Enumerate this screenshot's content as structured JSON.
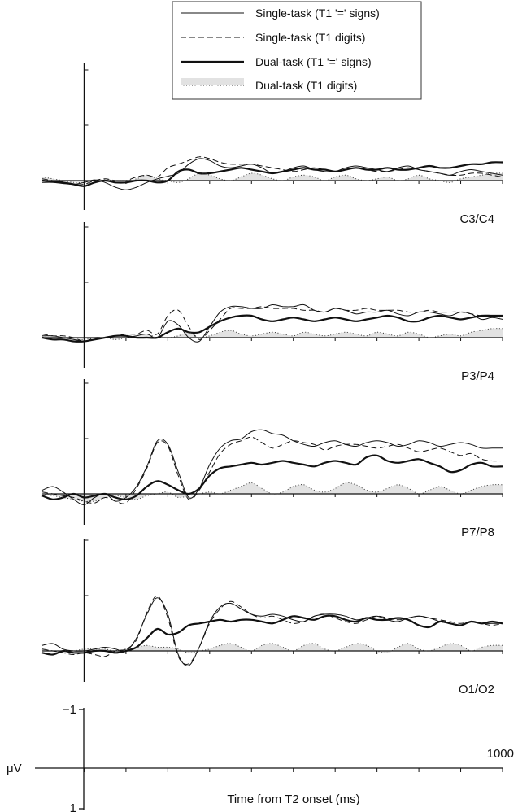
{
  "chart_data": {
    "type": "line",
    "xlabel": "Time from T2 onset (ms)",
    "scale": {
      "unit_label": "μV",
      "x_tick_label": "1000",
      "y_top_label": "−1",
      "y_bottom_label": "1",
      "xlim": [
        -100,
        1000
      ],
      "ylim_note": "negative up",
      "tick_spacing_ms": 100
    },
    "legend": {
      "position": "top-right",
      "entries": [
        {
          "label": "Single-task (T1 '=' signs)",
          "style": "thin-solid"
        },
        {
          "label": "Single-task (T1 digits)",
          "style": "thin-dashed"
        },
        {
          "label": "Dual-task (T1 '=' signs)",
          "style": "thick-solid"
        },
        {
          "label": "Dual-task (T1 digits)",
          "style": "dotted-shaded"
        }
      ]
    },
    "x": [
      -100,
      -75,
      -50,
      -25,
      0,
      25,
      50,
      75,
      100,
      125,
      150,
      175,
      200,
      225,
      250,
      275,
      300,
      325,
      350,
      375,
      400,
      425,
      450,
      475,
      500,
      525,
      550,
      575,
      600,
      625,
      650,
      675,
      700,
      725,
      750,
      775,
      800,
      825,
      850,
      875,
      900,
      925,
      950,
      975,
      1000
    ],
    "panels": [
      {
        "label": "C3/C4",
        "series": [
          {
            "name": "Single-task (T1 '=' signs)",
            "values": [
              -0.05,
              -0.05,
              -0.08,
              -0.1,
              -0.05,
              0.02,
              -0.05,
              -0.18,
              -0.25,
              -0.18,
              -0.05,
              0.05,
              0.12,
              0.2,
              0.45,
              0.6,
              0.55,
              0.4,
              0.35,
              0.4,
              0.45,
              0.35,
              0.2,
              0.25,
              0.35,
              0.4,
              0.3,
              0.25,
              0.25,
              0.35,
              0.4,
              0.35,
              0.3,
              0.25,
              0.35,
              0.4,
              0.3,
              0.25,
              0.2,
              0.15,
              0.25,
              0.3,
              0.25,
              0.2,
              0.15
            ]
          },
          {
            "name": "Single-task (T1 digits)",
            "values": [
              0.05,
              0.0,
              -0.05,
              -0.1,
              -0.1,
              0.0,
              0.05,
              0.0,
              0.0,
              0.1,
              0.15,
              0.1,
              0.35,
              0.45,
              0.55,
              0.65,
              0.6,
              0.5,
              0.45,
              0.45,
              0.45,
              0.4,
              0.35,
              0.3,
              0.25,
              0.3,
              0.35,
              0.3,
              0.25,
              0.3,
              0.35,
              0.3,
              0.25,
              0.25,
              0.3,
              0.35,
              0.3,
              0.25,
              0.2,
              0.15,
              0.15,
              0.2,
              0.2,
              0.15,
              0.1
            ]
          },
          {
            "name": "Dual-task (T1 '=' signs)",
            "values": [
              0.0,
              -0.03,
              -0.05,
              -0.1,
              -0.15,
              -0.05,
              0.0,
              -0.05,
              -0.05,
              0.0,
              0.0,
              -0.05,
              0.0,
              0.25,
              0.3,
              0.2,
              0.2,
              0.25,
              0.3,
              0.35,
              0.3,
              0.25,
              0.2,
              0.25,
              0.3,
              0.35,
              0.3,
              0.3,
              0.25,
              0.3,
              0.35,
              0.3,
              0.3,
              0.35,
              0.3,
              0.3,
              0.35,
              0.4,
              0.35,
              0.35,
              0.4,
              0.45,
              0.45,
              0.5,
              0.5
            ]
          },
          {
            "name": "Dual-task (T1 digits)",
            "values": [
              0.1,
              0.05,
              0.0,
              -0.05,
              -0.05,
              0.0,
              0.02,
              0.0,
              0.0,
              0.05,
              0.15,
              0.05,
              0.0,
              -0.05,
              0.05,
              0.2,
              0.15,
              0.05,
              0.0,
              0.1,
              0.2,
              0.15,
              0.05,
              0.0,
              0.1,
              0.15,
              0.1,
              0.0,
              0.1,
              0.15,
              0.05,
              0.0,
              0.05,
              0.1,
              0.0,
              0.05,
              0.15,
              0.05,
              0.0,
              -0.05,
              0.05,
              0.1,
              0.15,
              0.2,
              0.2
            ]
          }
        ]
      },
      {
        "label": "P3/P4",
        "series": [
          {
            "name": "Single-task (T1 '=' signs)",
            "values": [
              0.05,
              0.05,
              0.0,
              -0.05,
              -0.1,
              -0.05,
              0.0,
              0.0,
              0.0,
              0.05,
              0.1,
              0.0,
              0.45,
              0.35,
              0.0,
              -0.1,
              0.3,
              0.7,
              0.85,
              0.85,
              0.8,
              0.8,
              0.9,
              0.85,
              0.85,
              0.9,
              0.75,
              0.7,
              0.8,
              0.75,
              0.65,
              0.7,
              0.7,
              0.75,
              0.65,
              0.6,
              0.7,
              0.7,
              0.65,
              0.6,
              0.7,
              0.65,
              0.5,
              0.55,
              0.5
            ]
          },
          {
            "name": "Single-task (T1 digits)",
            "values": [
              0.1,
              0.05,
              0.05,
              0.0,
              -0.1,
              0.0,
              0.0,
              0.05,
              0.1,
              0.1,
              0.2,
              0.1,
              0.6,
              0.75,
              0.3,
              -0.05,
              0.2,
              0.5,
              0.8,
              0.8,
              0.8,
              0.85,
              0.8,
              0.8,
              0.8,
              0.75,
              0.75,
              0.7,
              0.8,
              0.75,
              0.75,
              0.8,
              0.75,
              0.75,
              0.75,
              0.7,
              0.7,
              0.75,
              0.7,
              0.7,
              0.7,
              0.65,
              0.6,
              0.6,
              0.55
            ]
          },
          {
            "name": "Dual-task (T1 '=' signs)",
            "values": [
              0.0,
              -0.05,
              -0.05,
              -0.1,
              -0.1,
              -0.05,
              0.0,
              0.05,
              0.05,
              0.0,
              0.0,
              0.0,
              0.15,
              0.25,
              0.15,
              0.15,
              0.3,
              0.45,
              0.55,
              0.6,
              0.6,
              0.5,
              0.45,
              0.5,
              0.55,
              0.5,
              0.45,
              0.5,
              0.55,
              0.5,
              0.45,
              0.5,
              0.55,
              0.6,
              0.55,
              0.45,
              0.45,
              0.55,
              0.6,
              0.55,
              0.5,
              0.55,
              0.6,
              0.6,
              0.6
            ]
          },
          {
            "name": "Dual-task (T1 digits)",
            "values": [
              0.05,
              0.05,
              0.0,
              -0.05,
              -0.05,
              0.0,
              0.0,
              -0.05,
              0.0,
              0.05,
              0.1,
              0.0,
              0.0,
              0.05,
              0.15,
              0.0,
              0.05,
              0.15,
              0.2,
              0.1,
              0.05,
              0.1,
              0.15,
              0.1,
              0.05,
              0.15,
              0.1,
              0.05,
              0.1,
              0.15,
              0.1,
              0.05,
              0.15,
              0.1,
              0.05,
              0.15,
              0.1,
              0.0,
              0.05,
              0.1,
              0.05,
              0.15,
              0.2,
              0.25,
              0.25
            ]
          }
        ]
      },
      {
        "label": "P7/P8",
        "series": [
          {
            "name": "Single-task (T1 '=' signs)",
            "values": [
              0.1,
              0.2,
              0.05,
              -0.15,
              -0.3,
              -0.1,
              0.0,
              -0.2,
              -0.1,
              0.2,
              0.75,
              1.45,
              1.35,
              0.6,
              -0.1,
              0.15,
              0.8,
              1.25,
              1.45,
              1.5,
              1.7,
              1.75,
              1.65,
              1.6,
              1.45,
              1.35,
              1.3,
              1.4,
              1.45,
              1.35,
              1.3,
              1.4,
              1.45,
              1.4,
              1.3,
              1.35,
              1.45,
              1.4,
              1.3,
              1.35,
              1.4,
              1.35,
              1.25,
              1.25,
              1.25
            ]
          },
          {
            "name": "Single-task (T1 digits)",
            "values": [
              0.05,
              0.0,
              -0.05,
              -0.1,
              -0.2,
              -0.25,
              -0.1,
              -0.2,
              -0.25,
              0.15,
              0.7,
              1.4,
              1.3,
              0.5,
              -0.15,
              0.1,
              0.6,
              1.1,
              1.35,
              1.45,
              1.55,
              1.4,
              1.25,
              1.35,
              1.45,
              1.4,
              1.35,
              1.2,
              1.3,
              1.35,
              1.35,
              1.3,
              1.25,
              1.3,
              1.35,
              1.25,
              1.15,
              1.2,
              1.25,
              1.15,
              1.05,
              1.1,
              0.95,
              0.9,
              0.9
            ]
          },
          {
            "name": "Dual-task (T1 '=' signs)",
            "values": [
              -0.05,
              -0.15,
              -0.1,
              0.0,
              -0.1,
              -0.05,
              0.0,
              -0.1,
              -0.15,
              -0.05,
              0.2,
              0.35,
              0.25,
              0.1,
              0.0,
              0.15,
              0.5,
              0.7,
              0.75,
              0.8,
              0.85,
              0.8,
              0.85,
              0.9,
              0.85,
              0.8,
              0.75,
              0.85,
              0.9,
              0.85,
              0.8,
              1.0,
              1.05,
              0.9,
              0.85,
              0.9,
              0.95,
              0.85,
              0.75,
              0.6,
              0.65,
              0.8,
              0.85,
              0.75,
              0.75
            ]
          },
          {
            "name": "Dual-task (T1 digits)",
            "values": [
              0.0,
              -0.05,
              -0.1,
              -0.15,
              -0.2,
              -0.2,
              -0.1,
              -0.05,
              -0.1,
              -0.15,
              -0.05,
              0.0,
              0.05,
              -0.1,
              -0.05,
              0.0,
              0.05,
              0.0,
              0.1,
              0.2,
              0.3,
              0.15,
              0.0,
              0.05,
              0.2,
              0.25,
              0.1,
              0.05,
              0.15,
              0.3,
              0.25,
              0.1,
              0.05,
              0.15,
              0.25,
              0.15,
              0.0,
              0.1,
              0.2,
              0.1,
              0.0,
              0.1,
              0.2,
              0.25,
              0.25
            ]
          }
        ]
      },
      {
        "label": "O1/O2",
        "series": [
          {
            "name": "Single-task (T1 '=' signs)",
            "values": [
              0.15,
              0.2,
              0.05,
              0.0,
              0.0,
              0.05,
              0.1,
              0.05,
              0.0,
              0.35,
              1.0,
              1.45,
              1.0,
              -0.1,
              -0.4,
              0.1,
              0.8,
              1.2,
              1.3,
              1.15,
              1.0,
              0.95,
              1.0,
              0.95,
              0.85,
              0.8,
              0.95,
              1.0,
              1.0,
              0.95,
              0.85,
              0.9,
              0.95,
              0.85,
              0.8,
              0.9,
              0.95,
              0.9,
              0.8,
              0.75,
              0.7,
              0.8,
              0.75,
              0.75,
              0.75
            ]
          },
          {
            "name": "Single-task (T1 digits)",
            "values": [
              0.05,
              0.0,
              -0.05,
              -0.1,
              -0.05,
              -0.1,
              -0.15,
              0.0,
              0.05,
              0.3,
              1.05,
              1.5,
              0.9,
              -0.15,
              -0.35,
              0.1,
              0.75,
              1.15,
              1.35,
              1.2,
              1.0,
              0.9,
              0.95,
              0.85,
              0.75,
              0.8,
              0.95,
              1.0,
              0.9,
              0.8,
              0.75,
              0.85,
              0.95,
              0.9,
              0.85,
              0.9,
              0.95,
              0.9,
              0.85,
              0.8,
              0.75,
              0.8,
              0.75,
              0.7,
              0.75
            ]
          },
          {
            "name": "Dual-task (T1 '=' signs)",
            "values": [
              -0.05,
              -0.1,
              0.0,
              -0.05,
              -0.05,
              0.0,
              0.0,
              -0.05,
              0.0,
              0.1,
              0.35,
              0.6,
              0.45,
              0.5,
              0.7,
              0.75,
              0.8,
              0.85,
              0.8,
              0.85,
              0.85,
              0.8,
              0.75,
              0.85,
              0.95,
              0.9,
              0.85,
              0.95,
              0.95,
              0.85,
              0.8,
              0.9,
              0.85,
              0.85,
              0.9,
              0.85,
              0.7,
              0.65,
              0.8,
              0.75,
              0.7,
              0.8,
              0.75,
              0.8,
              0.75
            ]
          },
          {
            "name": "Dual-task (T1 digits)",
            "values": [
              0.05,
              0.0,
              0.0,
              0.0,
              0.05,
              0.05,
              0.05,
              0.0,
              0.05,
              0.1,
              0.15,
              0.1,
              0.1,
              0.05,
              -0.05,
              0.0,
              0.05,
              0.15,
              0.2,
              0.1,
              0.0,
              0.15,
              0.2,
              0.1,
              0.0,
              0.15,
              0.2,
              0.05,
              0.0,
              0.1,
              0.2,
              0.15,
              0.0,
              -0.05,
              0.1,
              0.2,
              0.05,
              0.0,
              0.1,
              0.2,
              0.15,
              0.0,
              0.1,
              0.15,
              0.15
            ]
          }
        ]
      }
    ]
  }
}
